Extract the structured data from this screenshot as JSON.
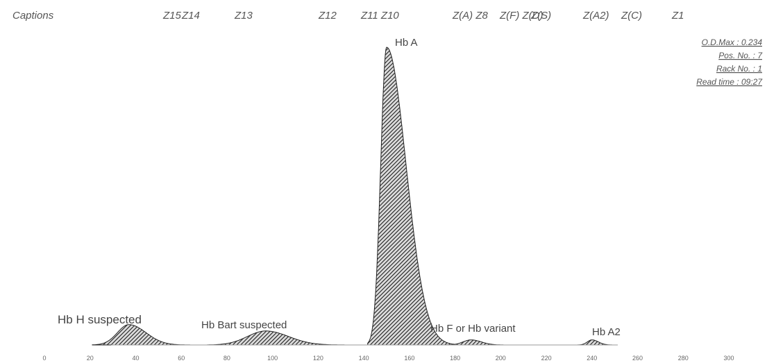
{
  "header": {
    "caption_prefix": "Captions",
    "zones": [
      "Z15",
      "Z14",
      "Z13",
      "Z12",
      "Z11 Z10",
      "Z(A) Z8",
      "Z(F) Z(D)",
      "Z(S)",
      "Z(A2)",
      "Z(C)",
      "Z1"
    ]
  },
  "info": {
    "od_max": "O.D.Max : 0.234",
    "pos_no": "Pos. No. : 7",
    "rack_no": "Rack No. : 1",
    "read_time": "Read time : 09:27"
  },
  "chart_data": {
    "type": "area",
    "title": "",
    "xlabel": "",
    "ylabel": "",
    "xlim": [
      0,
      300
    ],
    "ylim": [
      0,
      0.234
    ],
    "x_ticks": [
      "0",
      "20",
      "40",
      "60",
      "80",
      "100",
      "120",
      "140",
      "160",
      "180",
      "200",
      "220",
      "240",
      "260",
      "280",
      "300"
    ],
    "peaks": [
      {
        "name": "Hb H suspected",
        "center": 37,
        "height": 0.016
      },
      {
        "name": "Hb Bart suspected",
        "center": 97,
        "height": 0.011
      },
      {
        "name": "Hb A",
        "center": 150,
        "height": 0.234
      },
      {
        "name": "Hb F or Hb variant",
        "center": 187,
        "height": 0.004
      },
      {
        "name": "Hb A2",
        "center": 240,
        "height": 0.004
      }
    ],
    "fill_pattern": "hatched",
    "grid": false
  },
  "colors": {
    "peak_fill": "#222222",
    "baseline": "#999999",
    "text": "#555555"
  }
}
